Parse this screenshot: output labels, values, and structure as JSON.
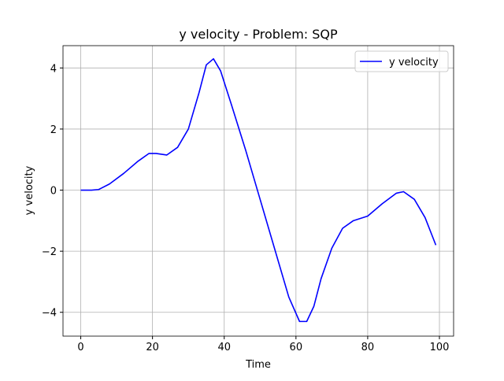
{
  "chart_data": {
    "type": "line",
    "title": "y velocity - Problem: SQP",
    "xlabel": "Time",
    "ylabel": "y velocity",
    "x": [
      0,
      3,
      5,
      8,
      12,
      16,
      19,
      21,
      24,
      27,
      30,
      33,
      35,
      37,
      39,
      42,
      46,
      50,
      54,
      58,
      61,
      63,
      65,
      67,
      70,
      73,
      76,
      80,
      84,
      88,
      90,
      93,
      96,
      99
    ],
    "series": [
      {
        "name": "y velocity",
        "color": "#0000ff",
        "values": [
          0,
          0,
          0.02,
          0.2,
          0.55,
          0.95,
          1.2,
          1.2,
          1.15,
          1.4,
          2.0,
          3.2,
          4.1,
          4.3,
          3.9,
          2.8,
          1.3,
          -0.3,
          -1.9,
          -3.5,
          -4.3,
          -4.3,
          -3.8,
          -2.9,
          -1.9,
          -1.25,
          -1.0,
          -0.85,
          -0.45,
          -0.1,
          -0.05,
          -0.3,
          -0.9,
          -1.8
        ]
      }
    ],
    "xlim": [
      -4.95,
      103.95
    ],
    "ylim": [
      -4.78,
      4.73
    ],
    "xticks": [
      0,
      20,
      40,
      60,
      80,
      100
    ],
    "yticks": [
      {
        "value": -4,
        "label": "−4"
      },
      {
        "value": -2,
        "label": "−2"
      },
      0,
      2,
      4
    ],
    "grid": true,
    "legend": "upper right"
  }
}
